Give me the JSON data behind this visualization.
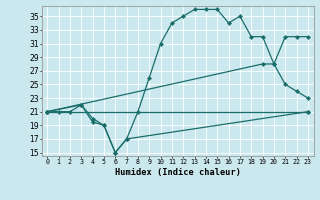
{
  "xlabel": "Humidex (Indice chaleur)",
  "bg_color": "#cce8ef",
  "grid_color": "#b0d8e0",
  "line_color": "#1a6e6a",
  "ylim": [
    14.5,
    36.5
  ],
  "xlim": [
    -0.5,
    23.5
  ],
  "yticks": [
    15,
    17,
    19,
    21,
    23,
    25,
    27,
    29,
    31,
    33,
    35
  ],
  "xticks": [
    0,
    1,
    2,
    3,
    4,
    5,
    6,
    7,
    8,
    9,
    10,
    11,
    12,
    13,
    14,
    15,
    16,
    17,
    18,
    19,
    20,
    21,
    22,
    23
  ],
  "series": [
    {
      "x": [
        0,
        1,
        2,
        3,
        4,
        5,
        6,
        7,
        8,
        9,
        10,
        11,
        12,
        13,
        14,
        15,
        16,
        17,
        18,
        19,
        20,
        21,
        22,
        23
      ],
      "y": [
        21,
        21,
        21,
        22,
        20,
        19,
        15,
        17,
        21,
        26,
        31,
        34,
        35,
        36,
        36,
        36,
        34,
        35,
        32,
        32,
        28,
        25,
        24,
        23
      ]
    },
    {
      "x": [
        0,
        3,
        4,
        5,
        6,
        7,
        23
      ],
      "y": [
        21,
        22,
        19.5,
        19,
        15,
        17,
        21
      ]
    },
    {
      "x": [
        0,
        19,
        20,
        21,
        22,
        23
      ],
      "y": [
        21,
        28,
        28,
        32,
        32,
        32
      ]
    },
    {
      "x": [
        0,
        23
      ],
      "y": [
        21,
        21
      ]
    }
  ]
}
